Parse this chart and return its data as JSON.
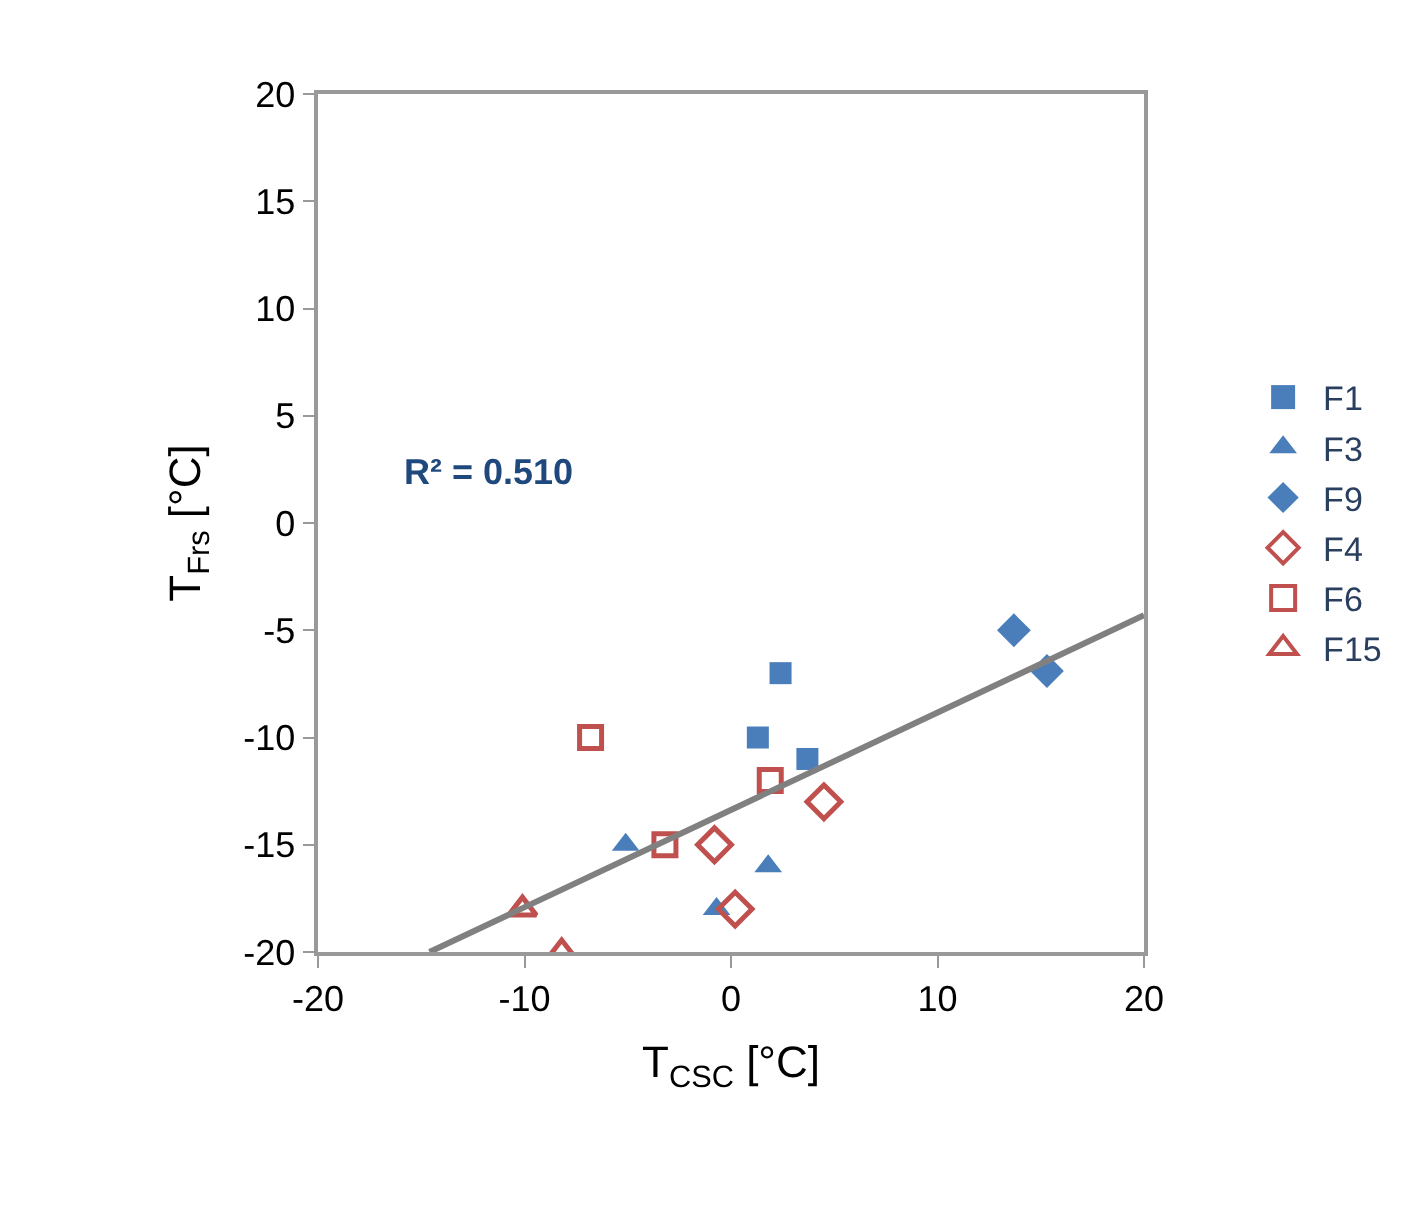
{
  "chart_data": {
    "type": "scatter",
    "xlabel": "T$_{CSC}$ [°C]",
    "ylabel": "T$_{Frs}$ [°C]",
    "xlim": [
      -20,
      20
    ],
    "xticks": [
      -20,
      -10,
      0,
      10,
      20
    ],
    "ylim": [
      -20,
      20
    ],
    "yticks": [
      -20,
      -15,
      -10,
      -5,
      0,
      5,
      10,
      15,
      20
    ],
    "grid": false,
    "legend": "right",
    "annotations": [
      "R² = 0.510"
    ],
    "series": [
      {
        "name": "F1",
        "color": "#4a7ebb",
        "marker": "square",
        "x": [
          2.4,
          1.3,
          3.7
        ],
        "values": [
          -7,
          -10,
          -11
        ]
      },
      {
        "name": "F3",
        "color": "#4a7ebb",
        "marker": "triangle",
        "x": [
          -5.1,
          1.8,
          -0.7
        ],
        "values": [
          -15,
          -16,
          -18
        ]
      },
      {
        "name": "F9",
        "color": "#4a7ebb",
        "marker": "diamond",
        "x": [
          13.7,
          15.3
        ],
        "values": [
          -5,
          -6.9
        ]
      },
      {
        "name": "F4",
        "color": "#c0504d",
        "marker": "diamond-open",
        "x": [
          4.5,
          -0.8,
          0.2
        ],
        "values": [
          -13,
          -15,
          -18
        ]
      },
      {
        "name": "F6",
        "color": "#c0504d",
        "marker": "square-open",
        "x": [
          -6.8,
          -3.2,
          1.9
        ],
        "values": [
          -10,
          -15,
          -12
        ]
      },
      {
        "name": "F15",
        "color": "#c0504d",
        "marker": "triangle-open",
        "x": [
          -10.1,
          -8.2
        ],
        "values": [
          -18,
          -20
        ]
      },
      {
        "type": "line",
        "color": "#808080",
        "x": [
          -14.6,
          20
        ],
        "values": [
          -20,
          -4.3
        ]
      }
    ]
  }
}
